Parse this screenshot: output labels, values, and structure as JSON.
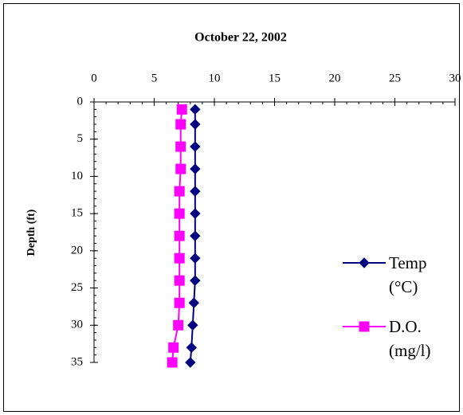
{
  "chart_data": {
    "type": "line",
    "title": "October 22,  2002",
    "y_label": "Depth (ft)",
    "x_position": "top",
    "y_inverted": true,
    "xlim": [
      0,
      30
    ],
    "xticks": [
      0,
      5,
      10,
      15,
      20,
      25,
      30
    ],
    "ylim": [
      0,
      35
    ],
    "yticks": [
      0,
      5,
      10,
      15,
      20,
      25,
      30,
      35
    ],
    "series": [
      {
        "name": "Temp (°C)",
        "color": "#000080",
        "marker": "diamond",
        "x": [
          8.4,
          8.4,
          8.4,
          8.4,
          8.4,
          8.4,
          8.4,
          8.4,
          8.4,
          8.3,
          8.2,
          8.1,
          8.0
        ],
        "y": [
          1,
          3,
          6,
          9,
          12,
          15,
          18,
          21,
          24,
          27,
          30,
          33,
          35
        ]
      },
      {
        "name": "D.O. (mg/l)",
        "color": "#ff00ff",
        "marker": "square",
        "x": [
          7.3,
          7.2,
          7.2,
          7.2,
          7.1,
          7.1,
          7.1,
          7.1,
          7.1,
          7.1,
          7.0,
          6.6,
          6.5
        ],
        "y": [
          1,
          3,
          6,
          9,
          12,
          15,
          18,
          21,
          24,
          27,
          30,
          33,
          35
        ]
      }
    ]
  }
}
